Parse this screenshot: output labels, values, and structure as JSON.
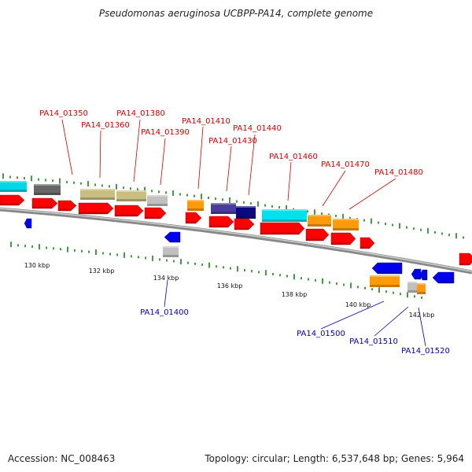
{
  "title": "Pseudomonas aeruginosa UCBPP-PA14, complete genome",
  "footer": {
    "accession": "Accession: NC_008463",
    "topology": "Topology: circular; Length: 6,537,648 bp; Genes: 5,964"
  },
  "kbp_labels": [
    "130 kbp",
    "132 kbp",
    "134 kbp",
    "136 kbp",
    "138 kbp",
    "140 kbp",
    "142 kbp"
  ],
  "gene_labels": {
    "forward": [
      "PA14_01350",
      "PA14_01360",
      "PA14_01380",
      "PA14_01390",
      "PA14_01410",
      "PA14_01430",
      "PA14_01440",
      "PA14_01460",
      "PA14_01470",
      "PA14_01480"
    ],
    "reverse": [
      "PA14_01400",
      "PA14_01500",
      "PA14_01510",
      "PA14_01520"
    ]
  },
  "colors": {
    "forward_label": "#cc0000",
    "reverse_label": "#0000aa",
    "cds": "#ff0000",
    "reverse_cds": "#0000ee",
    "backbone": "#888888",
    "tick": "#1a7f1a"
  }
}
